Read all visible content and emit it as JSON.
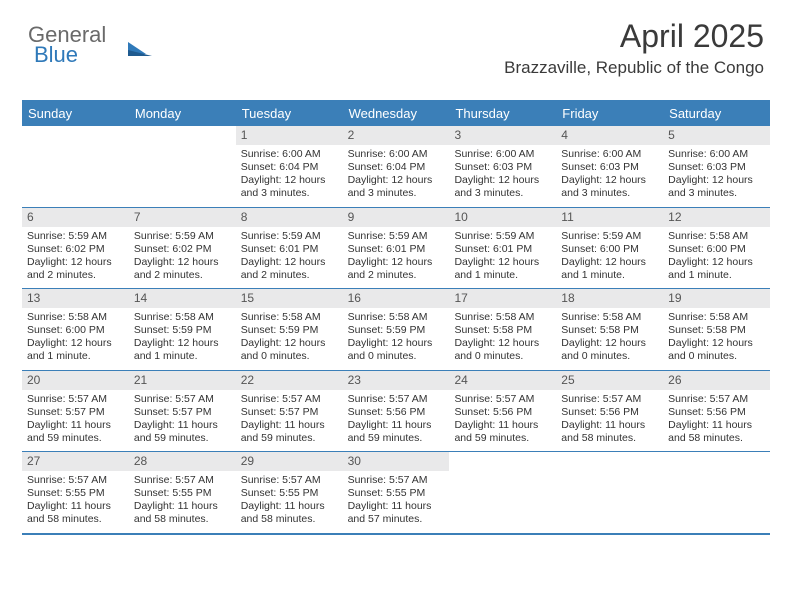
{
  "logo": {
    "line1": "General",
    "line2": "Blue"
  },
  "title": "April 2025",
  "subtitle": "Brazzaville, Republic of the Congo",
  "colors": {
    "header_bar": "#3b7fb8",
    "daynum_bg": "#e9e9ea",
    "text": "#333333",
    "logo_gray": "#6a6a6a",
    "logo_blue": "#2f79b9"
  },
  "day_names": [
    "Sunday",
    "Monday",
    "Tuesday",
    "Wednesday",
    "Thursday",
    "Friday",
    "Saturday"
  ],
  "weeks": [
    [
      {
        "n": "",
        "sunrise": "",
        "sunset": "",
        "daylight": ""
      },
      {
        "n": "",
        "sunrise": "",
        "sunset": "",
        "daylight": ""
      },
      {
        "n": "1",
        "sunrise": "Sunrise: 6:00 AM",
        "sunset": "Sunset: 6:04 PM",
        "daylight": "Daylight: 12 hours and 3 minutes."
      },
      {
        "n": "2",
        "sunrise": "Sunrise: 6:00 AM",
        "sunset": "Sunset: 6:04 PM",
        "daylight": "Daylight: 12 hours and 3 minutes."
      },
      {
        "n": "3",
        "sunrise": "Sunrise: 6:00 AM",
        "sunset": "Sunset: 6:03 PM",
        "daylight": "Daylight: 12 hours and 3 minutes."
      },
      {
        "n": "4",
        "sunrise": "Sunrise: 6:00 AM",
        "sunset": "Sunset: 6:03 PM",
        "daylight": "Daylight: 12 hours and 3 minutes."
      },
      {
        "n": "5",
        "sunrise": "Sunrise: 6:00 AM",
        "sunset": "Sunset: 6:03 PM",
        "daylight": "Daylight: 12 hours and 3 minutes."
      }
    ],
    [
      {
        "n": "6",
        "sunrise": "Sunrise: 5:59 AM",
        "sunset": "Sunset: 6:02 PM",
        "daylight": "Daylight: 12 hours and 2 minutes."
      },
      {
        "n": "7",
        "sunrise": "Sunrise: 5:59 AM",
        "sunset": "Sunset: 6:02 PM",
        "daylight": "Daylight: 12 hours and 2 minutes."
      },
      {
        "n": "8",
        "sunrise": "Sunrise: 5:59 AM",
        "sunset": "Sunset: 6:01 PM",
        "daylight": "Daylight: 12 hours and 2 minutes."
      },
      {
        "n": "9",
        "sunrise": "Sunrise: 5:59 AM",
        "sunset": "Sunset: 6:01 PM",
        "daylight": "Daylight: 12 hours and 2 minutes."
      },
      {
        "n": "10",
        "sunrise": "Sunrise: 5:59 AM",
        "sunset": "Sunset: 6:01 PM",
        "daylight": "Daylight: 12 hours and 1 minute."
      },
      {
        "n": "11",
        "sunrise": "Sunrise: 5:59 AM",
        "sunset": "Sunset: 6:00 PM",
        "daylight": "Daylight: 12 hours and 1 minute."
      },
      {
        "n": "12",
        "sunrise": "Sunrise: 5:58 AM",
        "sunset": "Sunset: 6:00 PM",
        "daylight": "Daylight: 12 hours and 1 minute."
      }
    ],
    [
      {
        "n": "13",
        "sunrise": "Sunrise: 5:58 AM",
        "sunset": "Sunset: 6:00 PM",
        "daylight": "Daylight: 12 hours and 1 minute."
      },
      {
        "n": "14",
        "sunrise": "Sunrise: 5:58 AM",
        "sunset": "Sunset: 5:59 PM",
        "daylight": "Daylight: 12 hours and 1 minute."
      },
      {
        "n": "15",
        "sunrise": "Sunrise: 5:58 AM",
        "sunset": "Sunset: 5:59 PM",
        "daylight": "Daylight: 12 hours and 0 minutes."
      },
      {
        "n": "16",
        "sunrise": "Sunrise: 5:58 AM",
        "sunset": "Sunset: 5:59 PM",
        "daylight": "Daylight: 12 hours and 0 minutes."
      },
      {
        "n": "17",
        "sunrise": "Sunrise: 5:58 AM",
        "sunset": "Sunset: 5:58 PM",
        "daylight": "Daylight: 12 hours and 0 minutes."
      },
      {
        "n": "18",
        "sunrise": "Sunrise: 5:58 AM",
        "sunset": "Sunset: 5:58 PM",
        "daylight": "Daylight: 12 hours and 0 minutes."
      },
      {
        "n": "19",
        "sunrise": "Sunrise: 5:58 AM",
        "sunset": "Sunset: 5:58 PM",
        "daylight": "Daylight: 12 hours and 0 minutes."
      }
    ],
    [
      {
        "n": "20",
        "sunrise": "Sunrise: 5:57 AM",
        "sunset": "Sunset: 5:57 PM",
        "daylight": "Daylight: 11 hours and 59 minutes."
      },
      {
        "n": "21",
        "sunrise": "Sunrise: 5:57 AM",
        "sunset": "Sunset: 5:57 PM",
        "daylight": "Daylight: 11 hours and 59 minutes."
      },
      {
        "n": "22",
        "sunrise": "Sunrise: 5:57 AM",
        "sunset": "Sunset: 5:57 PM",
        "daylight": "Daylight: 11 hours and 59 minutes."
      },
      {
        "n": "23",
        "sunrise": "Sunrise: 5:57 AM",
        "sunset": "Sunset: 5:56 PM",
        "daylight": "Daylight: 11 hours and 59 minutes."
      },
      {
        "n": "24",
        "sunrise": "Sunrise: 5:57 AM",
        "sunset": "Sunset: 5:56 PM",
        "daylight": "Daylight: 11 hours and 59 minutes."
      },
      {
        "n": "25",
        "sunrise": "Sunrise: 5:57 AM",
        "sunset": "Sunset: 5:56 PM",
        "daylight": "Daylight: 11 hours and 58 minutes."
      },
      {
        "n": "26",
        "sunrise": "Sunrise: 5:57 AM",
        "sunset": "Sunset: 5:56 PM",
        "daylight": "Daylight: 11 hours and 58 minutes."
      }
    ],
    [
      {
        "n": "27",
        "sunrise": "Sunrise: 5:57 AM",
        "sunset": "Sunset: 5:55 PM",
        "daylight": "Daylight: 11 hours and 58 minutes."
      },
      {
        "n": "28",
        "sunrise": "Sunrise: 5:57 AM",
        "sunset": "Sunset: 5:55 PM",
        "daylight": "Daylight: 11 hours and 58 minutes."
      },
      {
        "n": "29",
        "sunrise": "Sunrise: 5:57 AM",
        "sunset": "Sunset: 5:55 PM",
        "daylight": "Daylight: 11 hours and 58 minutes."
      },
      {
        "n": "30",
        "sunrise": "Sunrise: 5:57 AM",
        "sunset": "Sunset: 5:55 PM",
        "daylight": "Daylight: 11 hours and 57 minutes."
      },
      {
        "n": "",
        "sunrise": "",
        "sunset": "",
        "daylight": ""
      },
      {
        "n": "",
        "sunrise": "",
        "sunset": "",
        "daylight": ""
      },
      {
        "n": "",
        "sunrise": "",
        "sunset": "",
        "daylight": ""
      }
    ]
  ]
}
